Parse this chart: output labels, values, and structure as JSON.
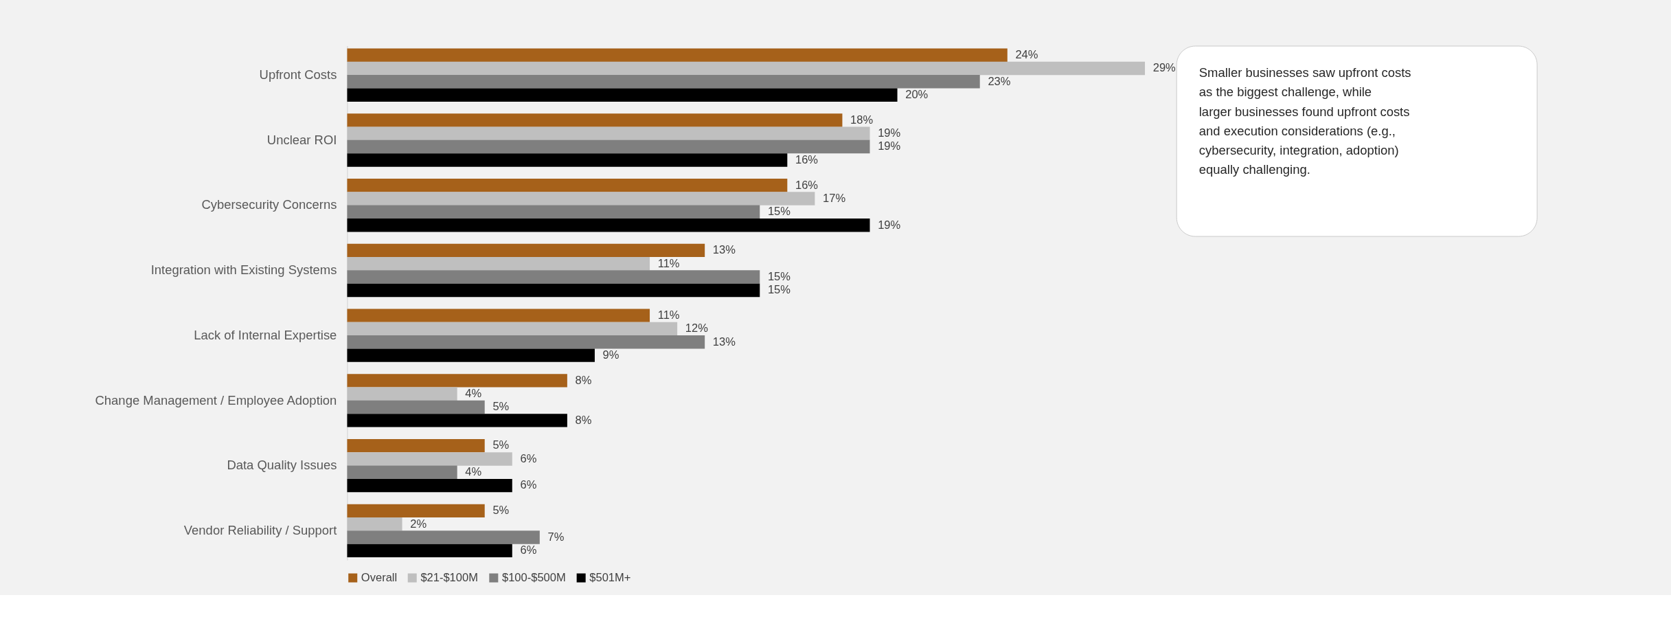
{
  "chart_data": {
    "type": "bar",
    "orientation": "horizontal",
    "categories": [
      "Upfront Costs",
      "Unclear ROI",
      "Cybersecurity Concerns",
      "Integration with Existing Systems",
      "Lack of Internal Expertise",
      "Change Management / Employee Adoption",
      "Data Quality Issues",
      "Vendor Reliability / Support"
    ],
    "series": [
      {
        "name": "Overall",
        "color": "#a6611a",
        "values": [
          24,
          18,
          16,
          13,
          11,
          8,
          5,
          5
        ],
        "value_labels": [
          "24%",
          "18%",
          "16%",
          "13%",
          "11%",
          "8%",
          "5%",
          "5%"
        ]
      },
      {
        "name": "$21-$100M",
        "color": "#bfbfbf",
        "values": [
          29,
          19,
          17,
          11,
          12,
          4,
          6,
          2
        ],
        "value_labels": [
          "29%",
          "19%",
          "17%",
          "11%",
          "12%",
          "4%",
          "6%",
          "2%"
        ]
      },
      {
        "name": "$100-$500M",
        "color": "#7f7f7f",
        "values": [
          23,
          19,
          15,
          15,
          13,
          5,
          4,
          7
        ],
        "value_labels": [
          "23%",
          "19%",
          "15%",
          "15%",
          "13%",
          "5%",
          "4%",
          "7%"
        ]
      },
      {
        "name": "$501M+",
        "color": "#000000",
        "values": [
          20,
          16,
          19,
          15,
          9,
          8,
          6,
          6
        ],
        "value_labels": [
          "20%",
          "16%",
          "19%",
          "15%",
          "9%",
          "8%",
          "6%",
          "6%"
        ]
      }
    ],
    "legend": "bottom",
    "tick_labels": "y",
    "annotations": [
      "Smaller businesses saw upfront costs as the biggest challenge, while larger businesses found upfront costs and execution considerations (e.g., cybersecurity, integration, adoption) equally challenging."
    ]
  }
}
